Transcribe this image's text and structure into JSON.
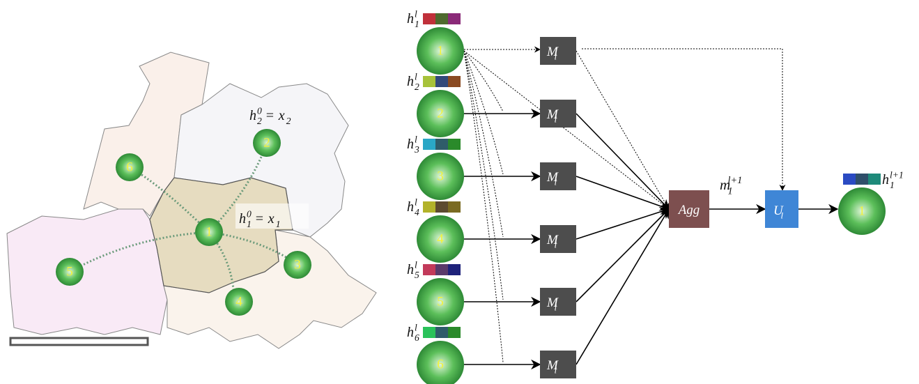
{
  "map": {
    "nodes": [
      "1",
      "2",
      "3",
      "4",
      "5",
      "6"
    ],
    "labels": [
      {
        "lhs": {
          "base": "h",
          "sup": "0",
          "sub": "2"
        },
        "eq": "=",
        "rhs": {
          "base": "x",
          "sub": "2"
        }
      },
      {
        "lhs": {
          "base": "h",
          "sup": "0",
          "sub": "1"
        },
        "eq": "=",
        "rhs": {
          "base": "x",
          "sub": "1"
        }
      }
    ]
  },
  "diagram": {
    "inputs": [
      {
        "label": {
          "base": "h",
          "sup": "l",
          "sub": "1"
        },
        "node": "1",
        "colors": [
          "#c0303a",
          "#4e6a2e",
          "#8a2a78"
        ],
        "message": {
          "base": "M",
          "sub": "l"
        }
      },
      {
        "label": {
          "base": "h",
          "sup": "l",
          "sub": "2"
        },
        "node": "2",
        "colors": [
          "#a7c23a",
          "#33497a",
          "#8a4a22"
        ],
        "message": {
          "base": "M",
          "sub": "l"
        }
      },
      {
        "label": {
          "base": "h",
          "sup": "l",
          "sub": "3"
        },
        "node": "3",
        "colors": [
          "#2aa7c6",
          "#2f5c6a",
          "#2a8a2a"
        ],
        "message": {
          "base": "M",
          "sub": "l"
        }
      },
      {
        "label": {
          "base": "h",
          "sup": "l",
          "sub": "4"
        },
        "node": "4",
        "colors": [
          "#b2b22a",
          "#5c4a30",
          "#7a6a22"
        ],
        "message": {
          "base": "M",
          "sub": "l"
        }
      },
      {
        "label": {
          "base": "h",
          "sup": "l",
          "sub": "5"
        },
        "node": "5",
        "colors": [
          "#c23a5a",
          "#5a3a6a",
          "#1e227a"
        ],
        "message": {
          "base": "M",
          "sub": "l"
        }
      },
      {
        "label": {
          "base": "h",
          "sup": "l",
          "sub": "6"
        },
        "node": "6",
        "colors": [
          "#2ac25a",
          "#2f5c6a",
          "#2a8a2a"
        ],
        "message": {
          "base": "M",
          "sub": "l"
        }
      }
    ],
    "aggregate": "Agg",
    "aggregate_output": {
      "base": "m",
      "sup": "l+1",
      "sub": "1"
    },
    "update": {
      "base": "U",
      "sub": "l"
    },
    "output": {
      "label": {
        "base": "h",
        "sup": "l+1",
        "sub": "1"
      },
      "node": "1",
      "colors": [
        "#2a4ac2",
        "#2f4f6a",
        "#1e8a7a"
      ]
    }
  }
}
